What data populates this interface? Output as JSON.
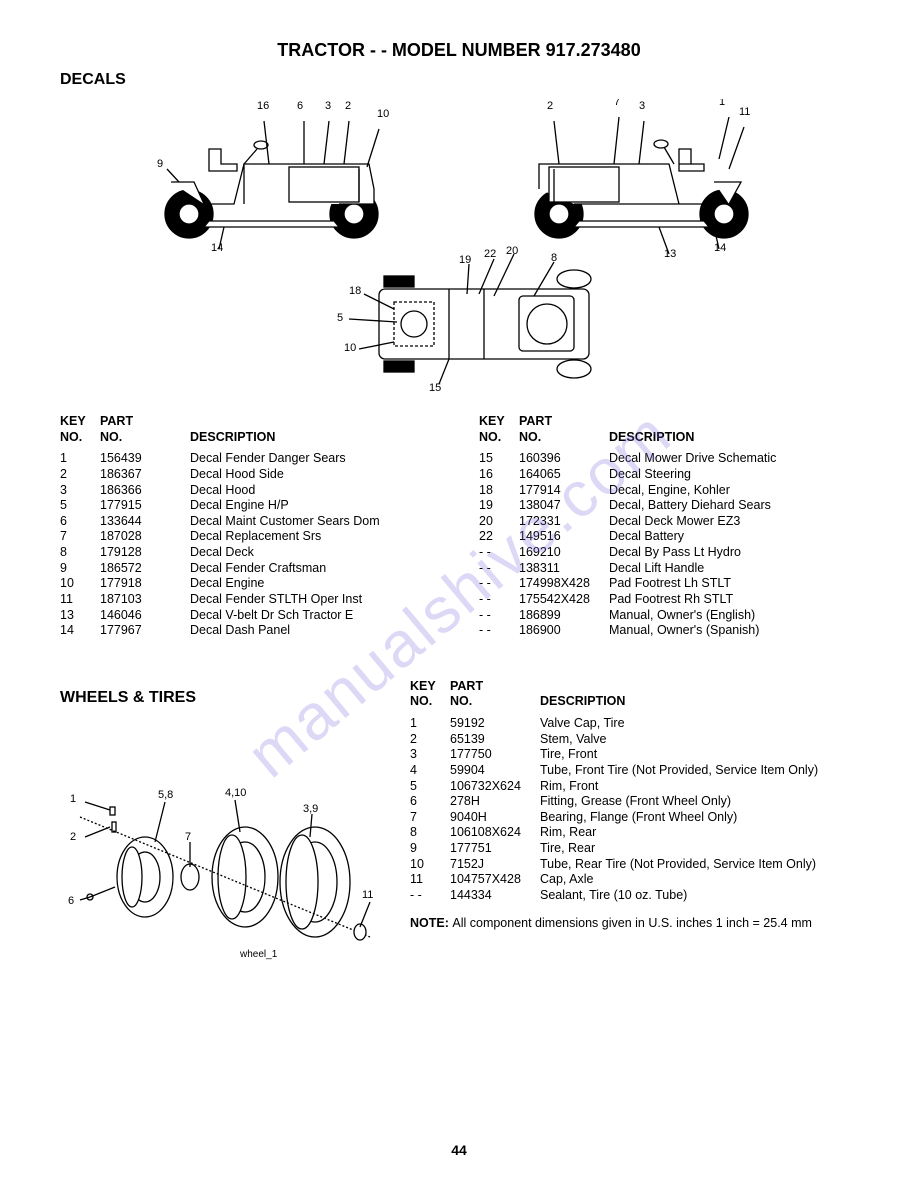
{
  "title": "TRACTOR - - MODEL NUMBER 917.273480",
  "section1_heading": "DECALS",
  "section2_heading": "WHEELS & TIRES",
  "page_number": "44",
  "watermark": "manualshive.com",
  "table_headers": {
    "key": "KEY NO.",
    "part": "PART NO.",
    "desc": "DESCRIPTION"
  },
  "decals_left": [
    {
      "key": "1",
      "part": "156439",
      "desc": "Decal Fender Danger Sears"
    },
    {
      "key": "2",
      "part": "186367",
      "desc": "Decal Hood Side"
    },
    {
      "key": "3",
      "part": "186366",
      "desc": "Decal Hood"
    },
    {
      "key": "5",
      "part": "177915",
      "desc": "Decal Engine H/P"
    },
    {
      "key": "6",
      "part": "133644",
      "desc": "Decal Maint Customer Sears Dom"
    },
    {
      "key": "7",
      "part": "187028",
      "desc": "Decal Replacement Srs"
    },
    {
      "key": "8",
      "part": "179128",
      "desc": "Decal Deck"
    },
    {
      "key": "9",
      "part": "186572",
      "desc": "Decal Fender Craftsman"
    },
    {
      "key": "10",
      "part": "177918",
      "desc": "Decal Engine"
    },
    {
      "key": "11",
      "part": "187103",
      "desc": "Decal Fender STLTH Oper Inst"
    },
    {
      "key": "13",
      "part": "146046",
      "desc": "Decal V-belt Dr Sch Tractor E"
    },
    {
      "key": "14",
      "part": "177967",
      "desc": "Decal Dash Panel"
    }
  ],
  "decals_right": [
    {
      "key": "15",
      "part": "160396",
      "desc": "Decal Mower Drive Schematic"
    },
    {
      "key": "16",
      "part": "164065",
      "desc": "Decal Steering"
    },
    {
      "key": "18",
      "part": "177914",
      "desc": "Decal, Engine, Kohler"
    },
    {
      "key": "19",
      "part": "138047",
      "desc": "Decal, Battery Diehard Sears"
    },
    {
      "key": "20",
      "part": "172331",
      "desc": "Decal Deck Mower EZ3"
    },
    {
      "key": "22",
      "part": "149516",
      "desc": "Decal Battery"
    },
    {
      "key": "- -",
      "part": "169210",
      "desc": "Decal By Pass Lt Hydro"
    },
    {
      "key": "- -",
      "part": "138311",
      "desc": "Decal Lift Handle"
    },
    {
      "key": "- -",
      "part": "174998X428",
      "desc": "Pad Footrest Lh STLT"
    },
    {
      "key": "- -",
      "part": "175542X428",
      "desc": "Pad Footrest Rh STLT"
    },
    {
      "key": "- -",
      "part": "186899",
      "desc": "Manual, Owner's (English)"
    },
    {
      "key": "- -",
      "part": "186900",
      "desc": "Manual, Owner's (Spanish)"
    }
  ],
  "wheels_parts": [
    {
      "key": "1",
      "part": "59192",
      "desc": "Valve Cap, Tire"
    },
    {
      "key": "2",
      "part": "65139",
      "desc": "Stem, Valve"
    },
    {
      "key": "3",
      "part": "177750",
      "desc": "Tire, Front"
    },
    {
      "key": "4",
      "part": "59904",
      "desc": "Tube, Front Tire (Not Provided, Service Item Only)"
    },
    {
      "key": "5",
      "part": "106732X624",
      "desc": "Rim, Front"
    },
    {
      "key": "6",
      "part": "278H",
      "desc": "Fitting, Grease (Front Wheel Only)"
    },
    {
      "key": "7",
      "part": "9040H",
      "desc": "Bearing, Flange (Front Wheel Only)"
    },
    {
      "key": "8",
      "part": "106108X624",
      "desc": "Rim, Rear"
    },
    {
      "key": "9",
      "part": "177751",
      "desc": "Tire, Rear"
    },
    {
      "key": "10",
      "part": "7152J",
      "desc": "Tube, Rear Tire (Not Provided, Service Item Only)"
    },
    {
      "key": "11",
      "part": "104757X428",
      "desc": "Cap, Axle"
    },
    {
      "key": "- -",
      "part": "144334",
      "desc": "Sealant, Tire (10 oz. Tube)"
    }
  ],
  "note_label": "NOTE:",
  "note_text": "All component dimensions given in U.S. inches 1 inch = 25.4 mm",
  "diagram": {
    "wheel_caption": "wheel_1",
    "tractor_left_labels": [
      "16",
      "6",
      "3",
      "2",
      "10",
      "9",
      "14"
    ],
    "tractor_right_labels": [
      "2",
      "7",
      "3",
      "1",
      "11",
      "13",
      "14"
    ],
    "tractor_top_labels": [
      "22",
      "20",
      "19",
      "8",
      "18",
      "5",
      "10",
      "15"
    ],
    "wheel_labels": [
      "1",
      "2",
      "5,8",
      "4,10",
      "7",
      "3,9",
      "6",
      "11"
    ]
  },
  "colors": {
    "text": "#000000",
    "background": "#ffffff",
    "watermark": "rgba(120,100,220,0.25)",
    "stroke": "#000000",
    "fill_black": "#000000"
  }
}
